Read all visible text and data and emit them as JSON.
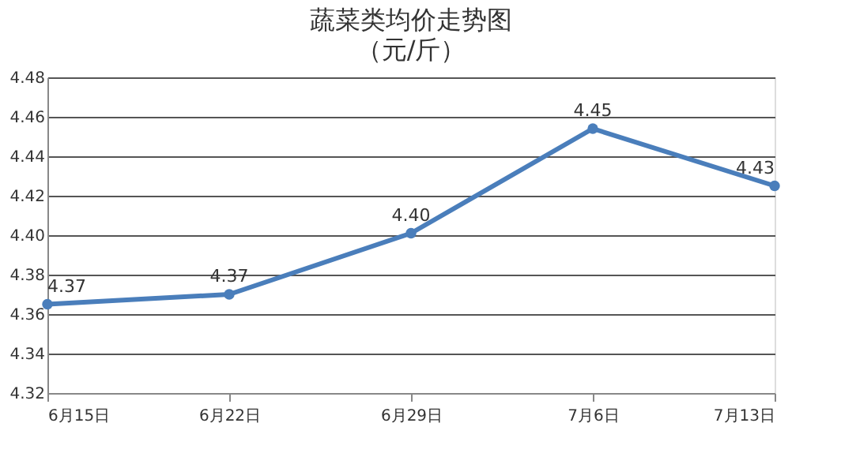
{
  "chart_data": {
    "type": "line",
    "title": "蔬菜类均价走势图",
    "subtitle": "（元/斤）",
    "categories": [
      "6月15日",
      "6月22日",
      "6月29日",
      "7月6日",
      "7月13日"
    ],
    "series": [
      {
        "color": "#4a7ebb",
        "values": [
          4.365,
          4.37,
          4.401,
          4.454,
          4.425
        ],
        "value_labels": [
          "4.37",
          "4.37",
          "4.40",
          "4.45",
          "4.43"
        ]
      }
    ],
    "ylim": [
      4.32,
      4.48
    ],
    "yticks": [
      4.32,
      4.34,
      4.36,
      4.38,
      {
        "value": 4.4,
        "label": "4.40"
      },
      4.42,
      4.44,
      4.46,
      4.48
    ],
    "grid": "y",
    "marker": "circle",
    "line_style": "solid"
  }
}
